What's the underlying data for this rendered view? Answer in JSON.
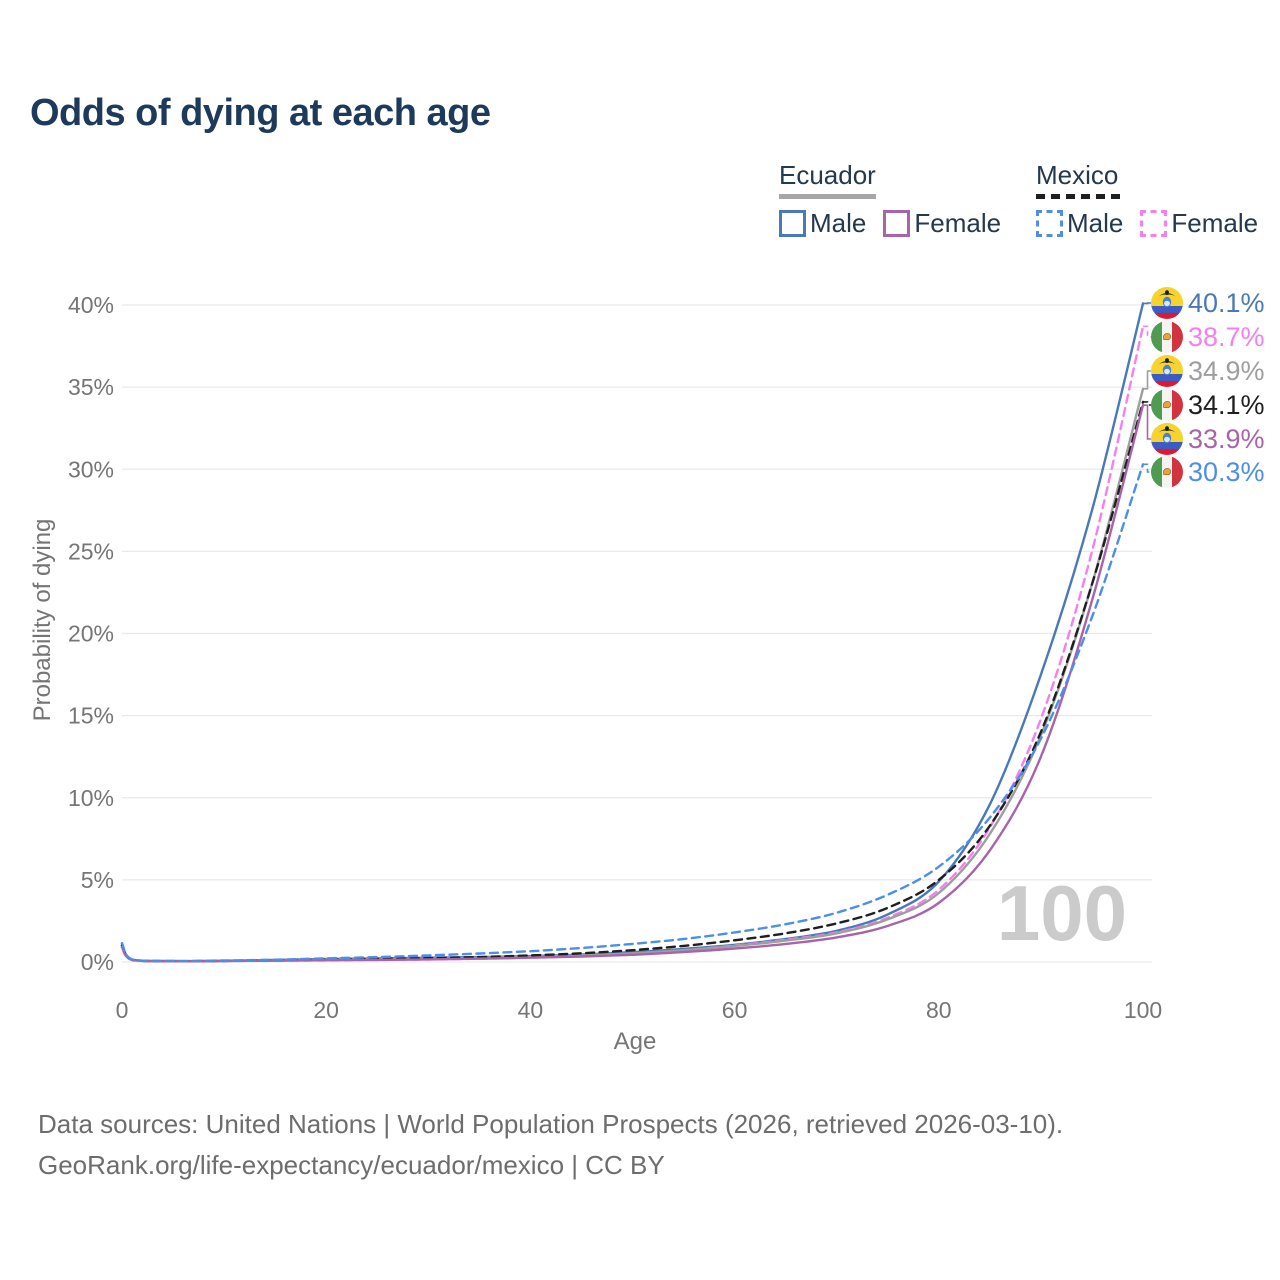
{
  "title": "Odds of dying at each age",
  "legend": {
    "ecuador": {
      "name": "Ecuador",
      "male_label": "Male",
      "female_label": "Female",
      "line_color": "#a6a6a6",
      "line_style": "solid"
    },
    "mexico": {
      "name": "Mexico",
      "male_label": "Male",
      "female_label": "Female",
      "line_color": "#1f1f1f",
      "line_style": "dashed"
    }
  },
  "y_axis": {
    "label": "Probability of dying",
    "ticks": [
      {
        "pct": 40,
        "label": "40%"
      },
      {
        "pct": 35,
        "label": "35%"
      },
      {
        "pct": 30,
        "label": "30%"
      },
      {
        "pct": 25,
        "label": "25%"
      },
      {
        "pct": 20,
        "label": "20%"
      },
      {
        "pct": 15,
        "label": "15%"
      },
      {
        "pct": 10,
        "label": "10%"
      },
      {
        "pct": 5,
        "label": "5%"
      },
      {
        "pct": 0,
        "label": "0%"
      }
    ]
  },
  "x_axis": {
    "label": "Age",
    "ticks": [
      {
        "age": 0,
        "label": "0"
      },
      {
        "age": 20,
        "label": "20"
      },
      {
        "age": 40,
        "label": "40"
      },
      {
        "age": 60,
        "label": "60"
      },
      {
        "age": 80,
        "label": "80"
      },
      {
        "age": 100,
        "label": "100"
      }
    ]
  },
  "watermark": "100",
  "footer": {
    "line1": "Data sources: United Nations | World Population Prospects (2026, retrieved 2026-03-10).",
    "line2": "GeoRank.org/life-expectancy/ecuador/mexico | CC BY"
  },
  "chart_data": {
    "type": "line",
    "title": "Odds of dying at each age",
    "xlabel": "Age",
    "ylabel": "Probability of dying",
    "xlim": [
      0,
      100
    ],
    "ylim_pct": [
      0,
      40
    ],
    "grid": "horizontal",
    "legend_position": "top-right",
    "ages": [
      0,
      1,
      5,
      10,
      15,
      20,
      25,
      30,
      35,
      40,
      45,
      50,
      55,
      60,
      65,
      70,
      75,
      80,
      85,
      90,
      95,
      100
    ],
    "series": [
      {
        "id": "ecuador-male",
        "country": "Ecuador",
        "sex": "Male",
        "color": "#4a79b8",
        "dashed": false,
        "end_label": "40.1%",
        "end_value_pct": 40.1,
        "values_pct": [
          1.1,
          0.15,
          0.06,
          0.08,
          0.12,
          0.18,
          0.22,
          0.26,
          0.3,
          0.36,
          0.45,
          0.6,
          0.8,
          1.05,
          1.4,
          1.9,
          2.9,
          4.9,
          9.6,
          17.5,
          27.5,
          40.1
        ]
      },
      {
        "id": "mexico-female",
        "country": "Mexico",
        "sex": "Female",
        "color": "#f57ff0",
        "dashed": true,
        "end_label": "38.7%",
        "end_value_pct": 38.7,
        "values_pct": [
          0.9,
          0.12,
          0.05,
          0.06,
          0.08,
          0.1,
          0.13,
          0.16,
          0.2,
          0.27,
          0.37,
          0.52,
          0.72,
          1.0,
          1.35,
          1.8,
          2.7,
          4.4,
          8.2,
          14.8,
          25.0,
          38.7
        ]
      },
      {
        "id": "ecuador-both",
        "country": "Ecuador",
        "sex": "Both sexes",
        "color": "#9e9e9e",
        "dashed": false,
        "end_label": "34.9%",
        "end_value_pct": 34.9,
        "values_pct": [
          1.0,
          0.13,
          0.05,
          0.07,
          0.1,
          0.14,
          0.17,
          0.2,
          0.25,
          0.31,
          0.4,
          0.53,
          0.72,
          0.98,
          1.3,
          1.75,
          2.6,
          4.2,
          7.8,
          13.8,
          23.0,
          34.9
        ]
      },
      {
        "id": "mexico-both",
        "country": "Mexico",
        "sex": "Both sexes",
        "color": "#1f1f1f",
        "dashed": true,
        "end_label": "34.1%",
        "end_value_pct": 34.1,
        "values_pct": [
          1.0,
          0.13,
          0.05,
          0.07,
          0.1,
          0.14,
          0.18,
          0.23,
          0.3,
          0.4,
          0.53,
          0.72,
          0.98,
          1.32,
          1.75,
          2.35,
          3.3,
          5.0,
          8.3,
          14.0,
          23.0,
          34.1
        ]
      },
      {
        "id": "ecuador-female",
        "country": "Ecuador",
        "sex": "Female",
        "color": "#a864a8",
        "dashed": false,
        "end_label": "33.9%",
        "end_value_pct": 33.9,
        "values_pct": [
          0.9,
          0.12,
          0.04,
          0.06,
          0.08,
          0.11,
          0.13,
          0.16,
          0.2,
          0.26,
          0.33,
          0.44,
          0.6,
          0.82,
          1.1,
          1.5,
          2.2,
          3.6,
          6.8,
          12.5,
          22.0,
          33.9
        ]
      },
      {
        "id": "mexico-male",
        "country": "Mexico",
        "sex": "Male",
        "color": "#4d8ee8",
        "dashed": true,
        "end_label": "30.3%",
        "end_value_pct": 30.3,
        "values_pct": [
          1.15,
          0.16,
          0.06,
          0.09,
          0.14,
          0.22,
          0.3,
          0.4,
          0.52,
          0.66,
          0.85,
          1.1,
          1.4,
          1.8,
          2.3,
          3.0,
          4.1,
          5.8,
          8.8,
          13.6,
          21.0,
          30.3
        ]
      }
    ]
  }
}
